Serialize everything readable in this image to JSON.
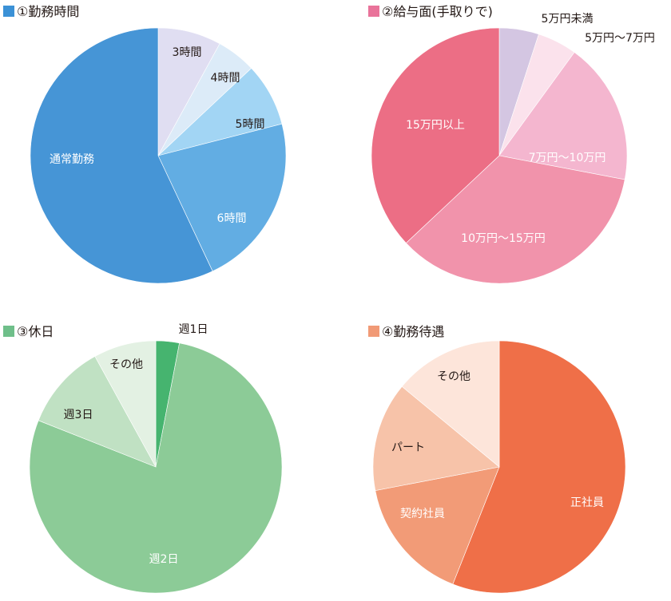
{
  "chart_data": [
    {
      "type": "pie",
      "title": "①勤務時間",
      "title_color": "#3b91d6",
      "categories": [
        "3時間",
        "4時間",
        "5時間",
        "6時間",
        "通常勤務"
      ],
      "values": [
        8,
        5,
        8,
        22,
        57
      ],
      "colors": [
        "#e0def2",
        "#dcebf8",
        "#a2d5f4",
        "#62ade3",
        "#4695d6"
      ],
      "label_colors": [
        "#231815",
        "#231815",
        "#231815",
        "#ffffff",
        "#ffffff"
      ],
      "start_angle_deg": 0,
      "direction": "clockwise"
    },
    {
      "type": "pie",
      "title": "②給与面(手取りで)",
      "title_color": "#e9739a",
      "categories": [
        "5万円未満",
        "5万円〜7万円",
        "7万円〜10万円",
        "10万円〜15万円",
        "15万円以上"
      ],
      "values": [
        5,
        5,
        18,
        35,
        37
      ],
      "colors": [
        "#d4c6e2",
        "#fbe2ec",
        "#f4b6cf",
        "#f193ab",
        "#ec6e85"
      ],
      "label_colors": [
        "#231815",
        "#231815",
        "#ffffff",
        "#ffffff",
        "#ffffff"
      ],
      "start_angle_deg": 0,
      "direction": "clockwise"
    },
    {
      "type": "pie",
      "title": "③休日",
      "title_color": "#6fbf8a",
      "categories": [
        "週1日",
        "週2日",
        "週3日",
        "その他"
      ],
      "values": [
        3,
        78,
        11,
        8
      ],
      "colors": [
        "#46b46f",
        "#8ccb97",
        "#c0e1c3",
        "#e3f1e3"
      ],
      "label_colors": [
        "#231815",
        "#ffffff",
        "#231815",
        "#231815"
      ],
      "start_angle_deg": 0,
      "direction": "clockwise"
    },
    {
      "type": "pie",
      "title": "④勤務待遇",
      "title_color": "#f19a76",
      "categories": [
        "正社員",
        "契約社員",
        "パート",
        "その他"
      ],
      "values": [
        56,
        16,
        14,
        14
      ],
      "colors": [
        "#ef6f48",
        "#f29b77",
        "#f7c3a9",
        "#fde5da"
      ],
      "label_colors": [
        "#ffffff",
        "#ffffff",
        "#231815",
        "#231815"
      ],
      "start_angle_deg": 0,
      "direction": "clockwise"
    }
  ]
}
